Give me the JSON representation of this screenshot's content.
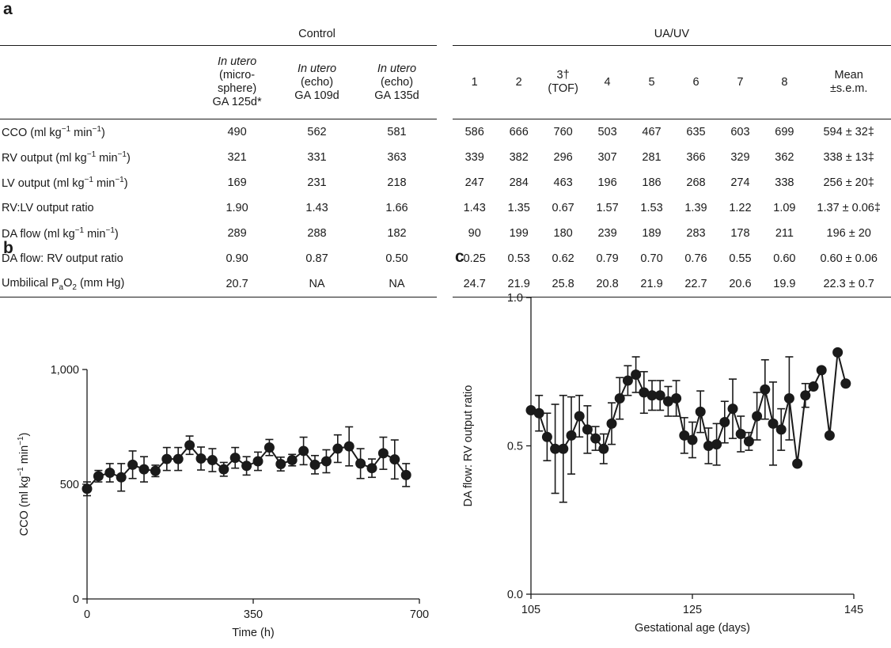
{
  "panels": {
    "a": "a",
    "b": "b",
    "c": "c"
  },
  "table": {
    "groups": {
      "control": "Control",
      "uauv": "UA/UV"
    },
    "control_headers": [
      {
        "italic": "In utero",
        "lines": [
          "(micro-",
          "sphere)",
          "GA 125d*"
        ]
      },
      {
        "italic": "In utero",
        "lines": [
          "(echo)",
          "GA 109d"
        ]
      },
      {
        "italic": "In utero",
        "lines": [
          "(echo)",
          "GA 135d"
        ]
      }
    ],
    "uauv_headers": [
      {
        "lines": [
          "1"
        ]
      },
      {
        "lines": [
          "2"
        ]
      },
      {
        "lines": [
          "3†",
          "(TOF)"
        ]
      },
      {
        "lines": [
          "4"
        ]
      },
      {
        "lines": [
          "5"
        ]
      },
      {
        "lines": [
          "6"
        ]
      },
      {
        "lines": [
          "7"
        ]
      },
      {
        "lines": [
          "8"
        ]
      },
      {
        "lines": [
          "Mean",
          "±s.e.m."
        ]
      }
    ],
    "rows": [
      {
        "label": "CCO (ml kg",
        "sup": "−1",
        "mid": " min",
        "sup2": "−1",
        "end": ")",
        "control": [
          "490",
          "562",
          "581"
        ],
        "uauv": [
          "586",
          "666",
          "760",
          "503",
          "467",
          "635",
          "603",
          "699",
          "594 ± 32‡"
        ]
      },
      {
        "label": "RV output (ml kg",
        "sup": "−1",
        "mid": " min",
        "sup2": "−1",
        "end": ")",
        "control": [
          "321",
          "331",
          "363"
        ],
        "uauv": [
          "339",
          "382",
          "296",
          "307",
          "281",
          "366",
          "329",
          "362",
          "338 ± 13‡"
        ]
      },
      {
        "label": "LV output (ml kg",
        "sup": "−1",
        "mid": " min",
        "sup2": "−1",
        "end": ")",
        "control": [
          "169",
          "231",
          "218"
        ],
        "uauv": [
          "247",
          "284",
          "463",
          "196",
          "186",
          "268",
          "274",
          "338",
          "256 ± 20‡"
        ]
      },
      {
        "label": "RV:LV output ratio",
        "control": [
          "1.90",
          "1.43",
          "1.66"
        ],
        "uauv": [
          "1.43",
          "1.35",
          "0.67",
          "1.57",
          "1.53",
          "1.39",
          "1.22",
          "1.09",
          "1.37 ± 0.06‡"
        ]
      },
      {
        "label": "DA flow (ml kg",
        "sup": "−1",
        "mid": " min",
        "sup2": "−1",
        "end": ")",
        "control": [
          "289",
          "288",
          "182"
        ],
        "uauv": [
          "90",
          "199",
          "180",
          "239",
          "189",
          "283",
          "178",
          "211",
          "196 ± 20"
        ]
      },
      {
        "label": "DA flow: RV output ratio",
        "control": [
          "0.90",
          "0.87",
          "0.50"
        ],
        "uauv": [
          "0.25",
          "0.53",
          "0.62",
          "0.79",
          "0.70",
          "0.76",
          "0.55",
          "0.60",
          "0.60 ± 0.06"
        ]
      },
      {
        "label": "Umbilical P",
        "sub": "a",
        "mid": "O",
        "sub2": "2",
        "end": " (mm Hg)",
        "control": [
          "20.7",
          "NA",
          "NA"
        ],
        "uauv": [
          "24.7",
          "21.9",
          "25.8",
          "20.8",
          "21.9",
          "22.7",
          "20.6",
          "19.9",
          "22.3 ± 0.7"
        ]
      }
    ]
  },
  "chart_data": [
    {
      "type": "line",
      "panel": "b",
      "xlabel": "Time (h)",
      "ylabel": "CCO (ml kg−1 min−1)",
      "ylabel_parts": {
        "pre": "CCO (ml kg",
        "sup1": "−1",
        "mid": " min",
        "sup2": "−1",
        "end": ")"
      },
      "xlim": [
        0,
        700
      ],
      "ylim": [
        0,
        1000
      ],
      "xticks": [
        0,
        350,
        700
      ],
      "xtick_labels": [
        "0",
        "350",
        "700"
      ],
      "yticks": [
        0,
        500,
        1000
      ],
      "ytick_labels": [
        "0",
        "500",
        "1,000"
      ],
      "grid": false,
      "points": [
        {
          "x": 0,
          "y": 480,
          "err": 30
        },
        {
          "x": 24,
          "y": 535,
          "err": 25
        },
        {
          "x": 48,
          "y": 550,
          "err": 40
        },
        {
          "x": 72,
          "y": 530,
          "err": 60
        },
        {
          "x": 96,
          "y": 585,
          "err": 60
        },
        {
          "x": 120,
          "y": 565,
          "err": 55
        },
        {
          "x": 144,
          "y": 558,
          "err": 25
        },
        {
          "x": 168,
          "y": 610,
          "err": 50
        },
        {
          "x": 192,
          "y": 610,
          "err": 50
        },
        {
          "x": 216,
          "y": 670,
          "err": 40
        },
        {
          "x": 240,
          "y": 612,
          "err": 50
        },
        {
          "x": 264,
          "y": 605,
          "err": 50
        },
        {
          "x": 288,
          "y": 565,
          "err": 30
        },
        {
          "x": 312,
          "y": 615,
          "err": 45
        },
        {
          "x": 336,
          "y": 580,
          "err": 40
        },
        {
          "x": 360,
          "y": 600,
          "err": 40
        },
        {
          "x": 384,
          "y": 660,
          "err": 35
        },
        {
          "x": 408,
          "y": 588,
          "err": 30
        },
        {
          "x": 432,
          "y": 605,
          "err": 25
        },
        {
          "x": 456,
          "y": 645,
          "err": 60
        },
        {
          "x": 480,
          "y": 585,
          "err": 40
        },
        {
          "x": 504,
          "y": 600,
          "err": 50
        },
        {
          "x": 528,
          "y": 655,
          "err": 60
        },
        {
          "x": 552,
          "y": 665,
          "err": 85
        },
        {
          "x": 576,
          "y": 590,
          "err": 65
        },
        {
          "x": 600,
          "y": 570,
          "err": 40
        },
        {
          "x": 624,
          "y": 635,
          "err": 70
        },
        {
          "x": 648,
          "y": 608,
          "err": 85
        },
        {
          "x": 672,
          "y": 540,
          "err": 50
        }
      ]
    },
    {
      "type": "line",
      "panel": "c",
      "xlabel": "Gestational age (days)",
      "ylabel": "DA flow: RV output ratio",
      "xlim": [
        105,
        145
      ],
      "ylim": [
        0,
        1
      ],
      "xticks": [
        105,
        125,
        145
      ],
      "xtick_labels": [
        "105",
        "125",
        "145"
      ],
      "yticks": [
        0,
        0.5,
        1
      ],
      "ytick_labels": [
        "0.0",
        "0.5",
        "1.0"
      ],
      "grid": false,
      "points": [
        {
          "x": 105,
          "y": 0.62,
          "err": 0.0
        },
        {
          "x": 106,
          "y": 0.61,
          "err": 0.06
        },
        {
          "x": 107,
          "y": 0.53,
          "err": 0.08
        },
        {
          "x": 108,
          "y": 0.49,
          "err": 0.15
        },
        {
          "x": 109,
          "y": 0.49,
          "err": 0.18
        },
        {
          "x": 110,
          "y": 0.535,
          "err": 0.13
        },
        {
          "x": 111,
          "y": 0.6,
          "err": 0.07
        },
        {
          "x": 112,
          "y": 0.555,
          "err": 0.08
        },
        {
          "x": 113,
          "y": 0.525,
          "err": 0.04
        },
        {
          "x": 114,
          "y": 0.49,
          "err": 0.05
        },
        {
          "x": 115,
          "y": 0.575,
          "err": 0.07
        },
        {
          "x": 116,
          "y": 0.66,
          "err": 0.07
        },
        {
          "x": 117,
          "y": 0.72,
          "err": 0.05
        },
        {
          "x": 118,
          "y": 0.74,
          "err": 0.06
        },
        {
          "x": 119,
          "y": 0.68,
          "err": 0.07
        },
        {
          "x": 120,
          "y": 0.67,
          "err": 0.05
        },
        {
          "x": 121,
          "y": 0.67,
          "err": 0.05
        },
        {
          "x": 122,
          "y": 0.65,
          "err": 0.05
        },
        {
          "x": 123,
          "y": 0.66,
          "err": 0.06
        },
        {
          "x": 124,
          "y": 0.535,
          "err": 0.06
        },
        {
          "x": 125,
          "y": 0.52,
          "err": 0.06
        },
        {
          "x": 126,
          "y": 0.615,
          "err": 0.07
        },
        {
          "x": 127,
          "y": 0.5,
          "err": 0.06
        },
        {
          "x": 128,
          "y": 0.505,
          "err": 0.07
        },
        {
          "x": 129,
          "y": 0.58,
          "err": 0.07
        },
        {
          "x": 130,
          "y": 0.625,
          "err": 0.1
        },
        {
          "x": 131,
          "y": 0.54,
          "err": 0.06
        },
        {
          "x": 132,
          "y": 0.515,
          "err": 0.03
        },
        {
          "x": 133,
          "y": 0.6,
          "err": 0.08
        },
        {
          "x": 134,
          "y": 0.69,
          "err": 0.1
        },
        {
          "x": 135,
          "y": 0.575,
          "err": 0.14
        },
        {
          "x": 136,
          "y": 0.555,
          "err": 0.07
        },
        {
          "x": 137,
          "y": 0.66,
          "err": 0.14
        },
        {
          "x": 138,
          "y": 0.44,
          "err": 0.0
        },
        {
          "x": 139,
          "y": 0.67,
          "err": 0.04
        },
        {
          "x": 140,
          "y": 0.7,
          "err": 0.0
        },
        {
          "x": 141,
          "y": 0.755,
          "err": 0.0
        },
        {
          "x": 142,
          "y": 0.535,
          "err": 0.0
        },
        {
          "x": 143,
          "y": 0.815,
          "err": 0.0
        },
        {
          "x": 144,
          "y": 0.71,
          "err": 0.0
        }
      ]
    }
  ]
}
